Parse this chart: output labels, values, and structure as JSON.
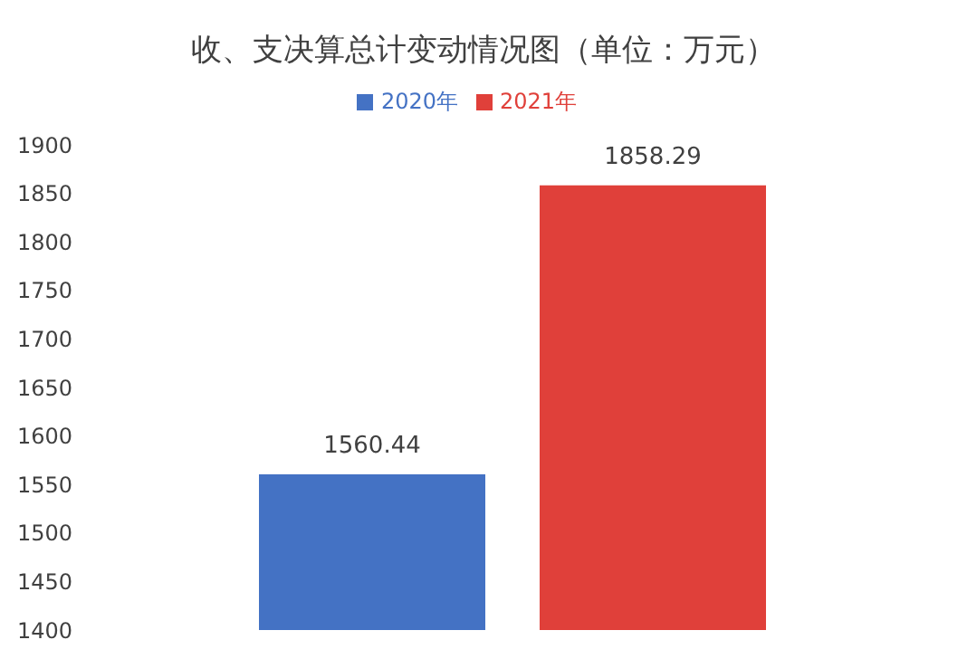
{
  "chart_data": {
    "type": "bar",
    "title": "收、支决算总计变动情况图（单位：万元）",
    "categories": [
      null
    ],
    "series": [
      {
        "name": "2020年",
        "color": "#4472c4",
        "values": [
          1560.44
        ]
      },
      {
        "name": "2021年",
        "color": "#e0403a",
        "values": [
          1858.29
        ]
      }
    ],
    "ylim": [
      1400,
      1900
    ],
    "yticks": [
      1400,
      1450,
      1500,
      1550,
      1600,
      1650,
      1700,
      1750,
      1800,
      1850,
      1900
    ],
    "data_labels": true,
    "legend": "top"
  }
}
